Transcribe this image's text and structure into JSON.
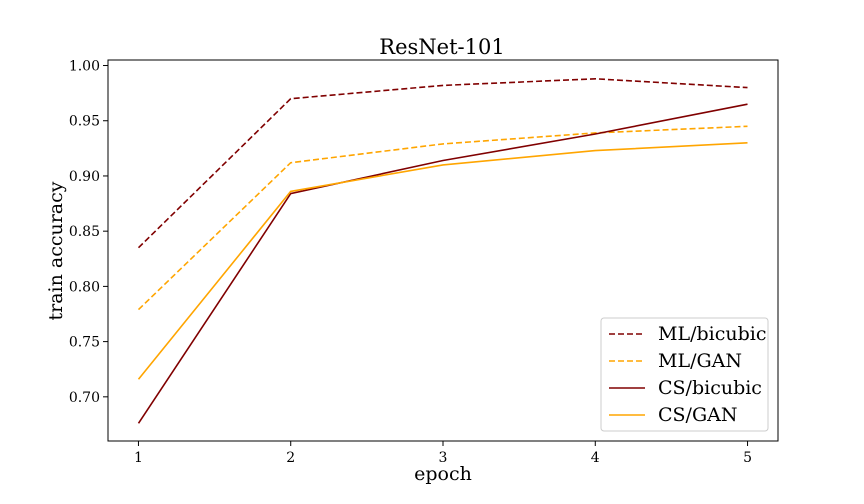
{
  "chart_data": {
    "type": "line",
    "title": "ResNet-101",
    "xlabel": "epoch",
    "ylabel": "train accuracy",
    "x": [
      1,
      2,
      3,
      4,
      5
    ],
    "xticks": [
      "1",
      "2",
      "3",
      "4",
      "5"
    ],
    "yticks": [
      "0.70",
      "0.75",
      "0.80",
      "0.85",
      "0.90",
      "0.95",
      "1.00"
    ],
    "ylim": [
      0.66,
      1.005
    ],
    "xlim": [
      0.8,
      5.2
    ],
    "grid": false,
    "legend_position": "lower-right",
    "series": [
      {
        "name": "ML/bicubic",
        "color": "#800000",
        "style": "dashed",
        "values": [
          0.835,
          0.97,
          0.982,
          0.988,
          0.98
        ]
      },
      {
        "name": "ML/GAN",
        "color": "#FFA500",
        "style": "dashed",
        "values": [
          0.779,
          0.912,
          0.929,
          0.939,
          0.945
        ]
      },
      {
        "name": "CS/bicubic",
        "color": "#800000",
        "style": "solid",
        "values": [
          0.676,
          0.884,
          0.914,
          0.938,
          0.965
        ]
      },
      {
        "name": "CS/GAN",
        "color": "#FFA500",
        "style": "solid",
        "values": [
          0.716,
          0.886,
          0.91,
          0.923,
          0.93
        ]
      }
    ]
  }
}
